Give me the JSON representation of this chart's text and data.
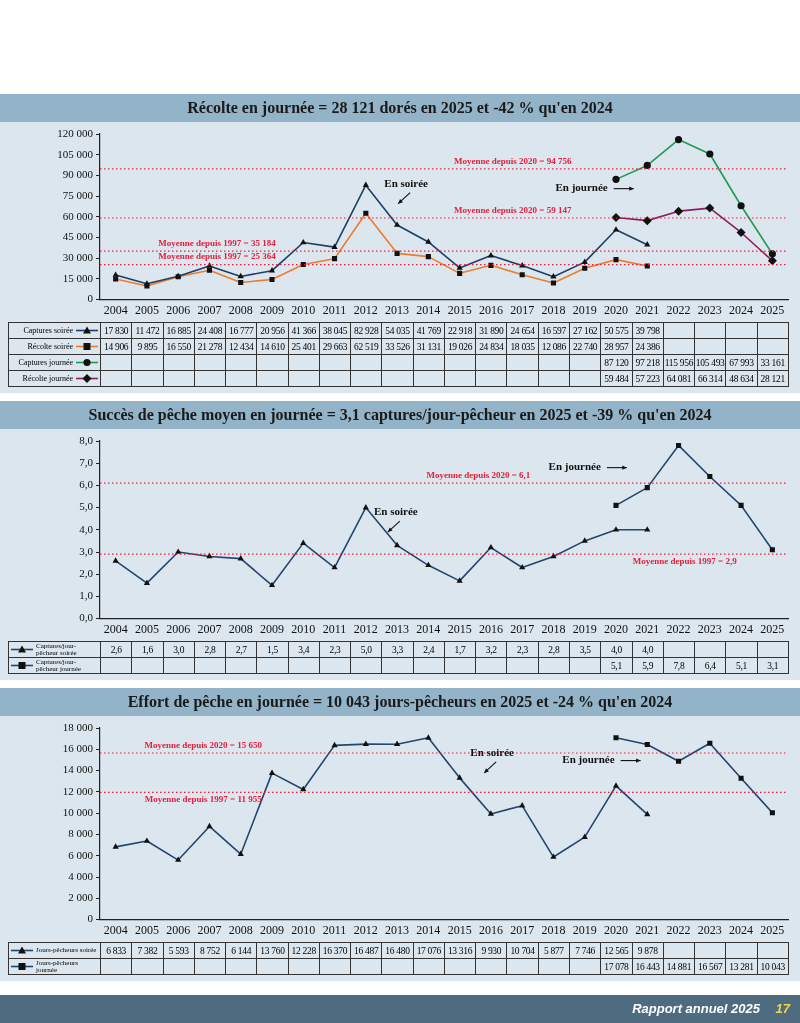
{
  "chart_data": [
    {
      "type": "line",
      "title": "Récolte en journée = 28 121 dorés en 2025 et -42 % qu'en 2024",
      "categories": [
        "2004",
        "2005",
        "2006",
        "2007",
        "2008",
        "2009",
        "2010",
        "2011",
        "2012",
        "2013",
        "2014",
        "2015",
        "2016",
        "2017",
        "2018",
        "2019",
        "2020",
        "2021",
        "2022",
        "2023",
        "2024",
        "2025"
      ],
      "series": [
        {
          "name": "Captures soirée",
          "color": "#1f3f66",
          "marker": "triangle",
          "values": [
            17830,
            11472,
            16885,
            24408,
            16777,
            20956,
            41366,
            38045,
            82928,
            54035,
            41769,
            22918,
            31890,
            24654,
            16597,
            27162,
            50575,
            39798,
            null,
            null,
            null,
            null
          ],
          "value_labels": [
            "17 830",
            "11 472",
            "16 885",
            "24 408",
            "16 777",
            "20 956",
            "41 366",
            "38 045",
            "82 928",
            "54 035",
            "41 769",
            "22 918",
            "31 890",
            "24 654",
            "16 597",
            "27 162",
            "50 575",
            "39 798",
            null,
            null,
            null,
            null
          ]
        },
        {
          "name": "Récolte soirée",
          "color": "#ee7d2b",
          "marker": "square",
          "values": [
            14906,
            9895,
            16550,
            21278,
            12434,
            14610,
            25401,
            29663,
            62519,
            33526,
            31131,
            19026,
            24834,
            18035,
            12086,
            22740,
            28957,
            24386,
            null,
            null,
            null,
            null
          ],
          "value_labels": [
            "14 906",
            "9 895",
            "16 550",
            "21 278",
            "12 434",
            "14 610",
            "25 401",
            "29 663",
            "62 519",
            "33 526",
            "31 131",
            "19 026",
            "24 834",
            "18 035",
            "12 086",
            "22 740",
            "28 957",
            "24 386",
            null,
            null,
            null,
            null
          ]
        },
        {
          "name": "Captures journée",
          "color": "#1f9a55",
          "marker": "circle",
          "values": [
            null,
            null,
            null,
            null,
            null,
            null,
            null,
            null,
            null,
            null,
            null,
            null,
            null,
            null,
            null,
            null,
            87120,
            97218,
            115956,
            105493,
            67993,
            33161
          ],
          "value_labels": [
            null,
            null,
            null,
            null,
            null,
            null,
            null,
            null,
            null,
            null,
            null,
            null,
            null,
            null,
            null,
            null,
            "87 120",
            "97 218",
            "115 956",
            "105 493",
            "67 993",
            "33 161"
          ]
        },
        {
          "name": "Récolte journée",
          "color": "#8e1f5e",
          "marker": "diamond",
          "values": [
            null,
            null,
            null,
            null,
            null,
            null,
            null,
            null,
            null,
            null,
            null,
            null,
            null,
            null,
            null,
            null,
            59484,
            57223,
            64081,
            66314,
            48634,
            28121
          ],
          "value_labels": [
            null,
            null,
            null,
            null,
            null,
            null,
            null,
            null,
            null,
            null,
            null,
            null,
            null,
            null,
            null,
            null,
            "59 484",
            "57 223",
            "64 081",
            "66 314",
            "48 634",
            "28 121"
          ]
        }
      ],
      "ylim": [
        0,
        120000
      ],
      "yticks": [
        {
          "value": 0,
          "label": "0"
        },
        {
          "value": 15000,
          "label": "15 000"
        },
        {
          "value": 30000,
          "label": "30 000"
        },
        {
          "value": 45000,
          "label": "45 000"
        },
        {
          "value": 60000,
          "label": "60 000"
        },
        {
          "value": 75000,
          "label": "75 000"
        },
        {
          "value": 90000,
          "label": "90 000"
        },
        {
          "value": 105000,
          "label": "105 000"
        },
        {
          "value": 120000,
          "label": "120 000"
        }
      ],
      "ref_lines": [
        {
          "axis": "y",
          "value": 35184,
          "label": "Moyenne depuis 1997 = 35 184",
          "color": "#e3203c",
          "line_style": "dotted"
        },
        {
          "axis": "y",
          "value": 25364,
          "label": "Moyenne depuis 1997 = 25 364",
          "color": "#e3203c",
          "line_style": "dotted"
        },
        {
          "axis": "y",
          "value": 94756,
          "label": "Moyenne depuis 2020 = 94 756",
          "color": "#e3203c",
          "line_style": "dotted"
        },
        {
          "axis": "y",
          "value": 59147,
          "label": "Moyenne depuis 2020 = 59 147",
          "color": "#e3203c",
          "line_style": "dotted"
        }
      ],
      "annotations": [
        "En soirée",
        "En journée"
      ],
      "data_labels": true,
      "legend": "bottom"
    },
    {
      "type": "line",
      "title": "Succès de pêche moyen en journée = 3,1 captures/jour-pêcheur en 2025 et -39 % qu'en 2024",
      "categories": [
        "2004",
        "2005",
        "2006",
        "2007",
        "2008",
        "2009",
        "2010",
        "2011",
        "2012",
        "2013",
        "2014",
        "2015",
        "2016",
        "2017",
        "2018",
        "2019",
        "2020",
        "2021",
        "2022",
        "2023",
        "2024",
        "2025"
      ],
      "series": [
        {
          "name": "Captures/jour-pêcheur soirée",
          "color": "#24466e",
          "marker": "triangle",
          "values": [
            2.6,
            1.6,
            3.0,
            2.8,
            2.7,
            1.5,
            3.4,
            2.3,
            5.0,
            3.3,
            2.4,
            1.7,
            3.2,
            2.3,
            2.8,
            3.5,
            4.0,
            4.0,
            null,
            null,
            null,
            null
          ],
          "value_labels": [
            "2,6",
            "1,6",
            "3,0",
            "2,8",
            "2,7",
            "1,5",
            "3,4",
            "2,3",
            "5,0",
            "3,3",
            "2,4",
            "1,7",
            "3,2",
            "2,3",
            "2,8",
            "3,5",
            "4,0",
            "4,0",
            null,
            null,
            null,
            null
          ]
        },
        {
          "name": "Captures/jour-pêcheur journée",
          "color": "#24466e",
          "marker": "square",
          "values": [
            null,
            null,
            null,
            null,
            null,
            null,
            null,
            null,
            null,
            null,
            null,
            null,
            null,
            null,
            null,
            null,
            5.1,
            5.9,
            7.8,
            6.4,
            5.1,
            3.1
          ],
          "value_labels": [
            null,
            null,
            null,
            null,
            null,
            null,
            null,
            null,
            null,
            null,
            null,
            null,
            null,
            null,
            null,
            null,
            "5,1",
            "5,9",
            "7,8",
            "6,4",
            "5,1",
            "3,1"
          ]
        }
      ],
      "ylim": [
        0,
        8
      ],
      "yticks": [
        {
          "value": 0,
          "label": "0,0"
        },
        {
          "value": 1,
          "label": "1,0"
        },
        {
          "value": 2,
          "label": "2,0"
        },
        {
          "value": 3,
          "label": "3,0"
        },
        {
          "value": 4,
          "label": "4,0"
        },
        {
          "value": 5,
          "label": "5,0"
        },
        {
          "value": 6,
          "label": "6,0"
        },
        {
          "value": 7,
          "label": "7,0"
        },
        {
          "value": 8,
          "label": "8,0"
        }
      ],
      "ref_lines": [
        {
          "axis": "y",
          "value": 2.9,
          "label": "Moyenne depuis 1997 = 2,9",
          "color": "#e3203c",
          "line_style": "dotted"
        },
        {
          "axis": "y",
          "value": 6.1,
          "label": "Moyenne depuis 2020 = 6,1",
          "color": "#e3203c",
          "line_style": "dotted"
        }
      ],
      "annotations": [
        "En soirée",
        "En journée"
      ],
      "data_labels": true,
      "legend": "bottom"
    },
    {
      "type": "line",
      "title": "Effort de pêche en journée = 10 043 jours-pêcheurs en 2025 et -24 % qu'en 2024",
      "categories": [
        "2004",
        "2005",
        "2006",
        "2007",
        "2008",
        "2009",
        "2010",
        "2011",
        "2012",
        "2013",
        "2014",
        "2015",
        "2016",
        "2017",
        "2018",
        "2019",
        "2020",
        "2021",
        "2022",
        "2023",
        "2024",
        "2025"
      ],
      "series": [
        {
          "name": "Jours-pêcheurs soirée",
          "color": "#24466e",
          "marker": "triangle",
          "values": [
            6833,
            7382,
            5593,
            8752,
            6144,
            13760,
            12228,
            16370,
            16487,
            16480,
            17076,
            13316,
            9930,
            10704,
            5877,
            7746,
            12565,
            9878,
            null,
            null,
            null,
            null
          ],
          "value_labels": [
            "6 833",
            "7 382",
            "5 593",
            "8 752",
            "6 144",
            "13 760",
            "12 228",
            "16 370",
            "16 487",
            "16 480",
            "17 076",
            "13 316",
            "9 930",
            "10 704",
            "5 877",
            "7 746",
            "12 565",
            "9 878",
            null,
            null,
            null,
            null
          ]
        },
        {
          "name": "Jours-pêcheurs journée",
          "color": "#24466e",
          "marker": "square",
          "values": [
            null,
            null,
            null,
            null,
            null,
            null,
            null,
            null,
            null,
            null,
            null,
            null,
            null,
            null,
            null,
            null,
            17078,
            16443,
            14881,
            16567,
            13281,
            10043
          ],
          "value_labels": [
            null,
            null,
            null,
            null,
            null,
            null,
            null,
            null,
            null,
            null,
            null,
            null,
            null,
            null,
            null,
            null,
            "17 078",
            "16 443",
            "14 881",
            "16 567",
            "13 281",
            "10 043"
          ]
        }
      ],
      "ylim": [
        0,
        18000
      ],
      "yticks": [
        {
          "value": 0,
          "label": "0"
        },
        {
          "value": 2000,
          "label": "2 000"
        },
        {
          "value": 4000,
          "label": "4 000"
        },
        {
          "value": 6000,
          "label": "6 000"
        },
        {
          "value": 8000,
          "label": "8 000"
        },
        {
          "value": 10000,
          "label": "10 000"
        },
        {
          "value": 12000,
          "label": "12 000"
        },
        {
          "value": 14000,
          "label": "14 000"
        },
        {
          "value": 16000,
          "label": "16 000"
        },
        {
          "value": 18000,
          "label": "18 000"
        }
      ],
      "ref_lines": [
        {
          "axis": "y",
          "value": 11955,
          "label": "Moyenne depuis 1997 = 11 955",
          "color": "#e3203c",
          "line_style": "dotted"
        },
        {
          "axis": "y",
          "value": 15650,
          "label": "Moyenne depuis 2020 = 15 650",
          "color": "#e3203c",
          "line_style": "dotted"
        }
      ],
      "annotations": [
        "En soirée",
        "En journée",
        "Rapport annuel 2025",
        "17"
      ],
      "data_labels": true,
      "legend": "bottom"
    }
  ]
}
